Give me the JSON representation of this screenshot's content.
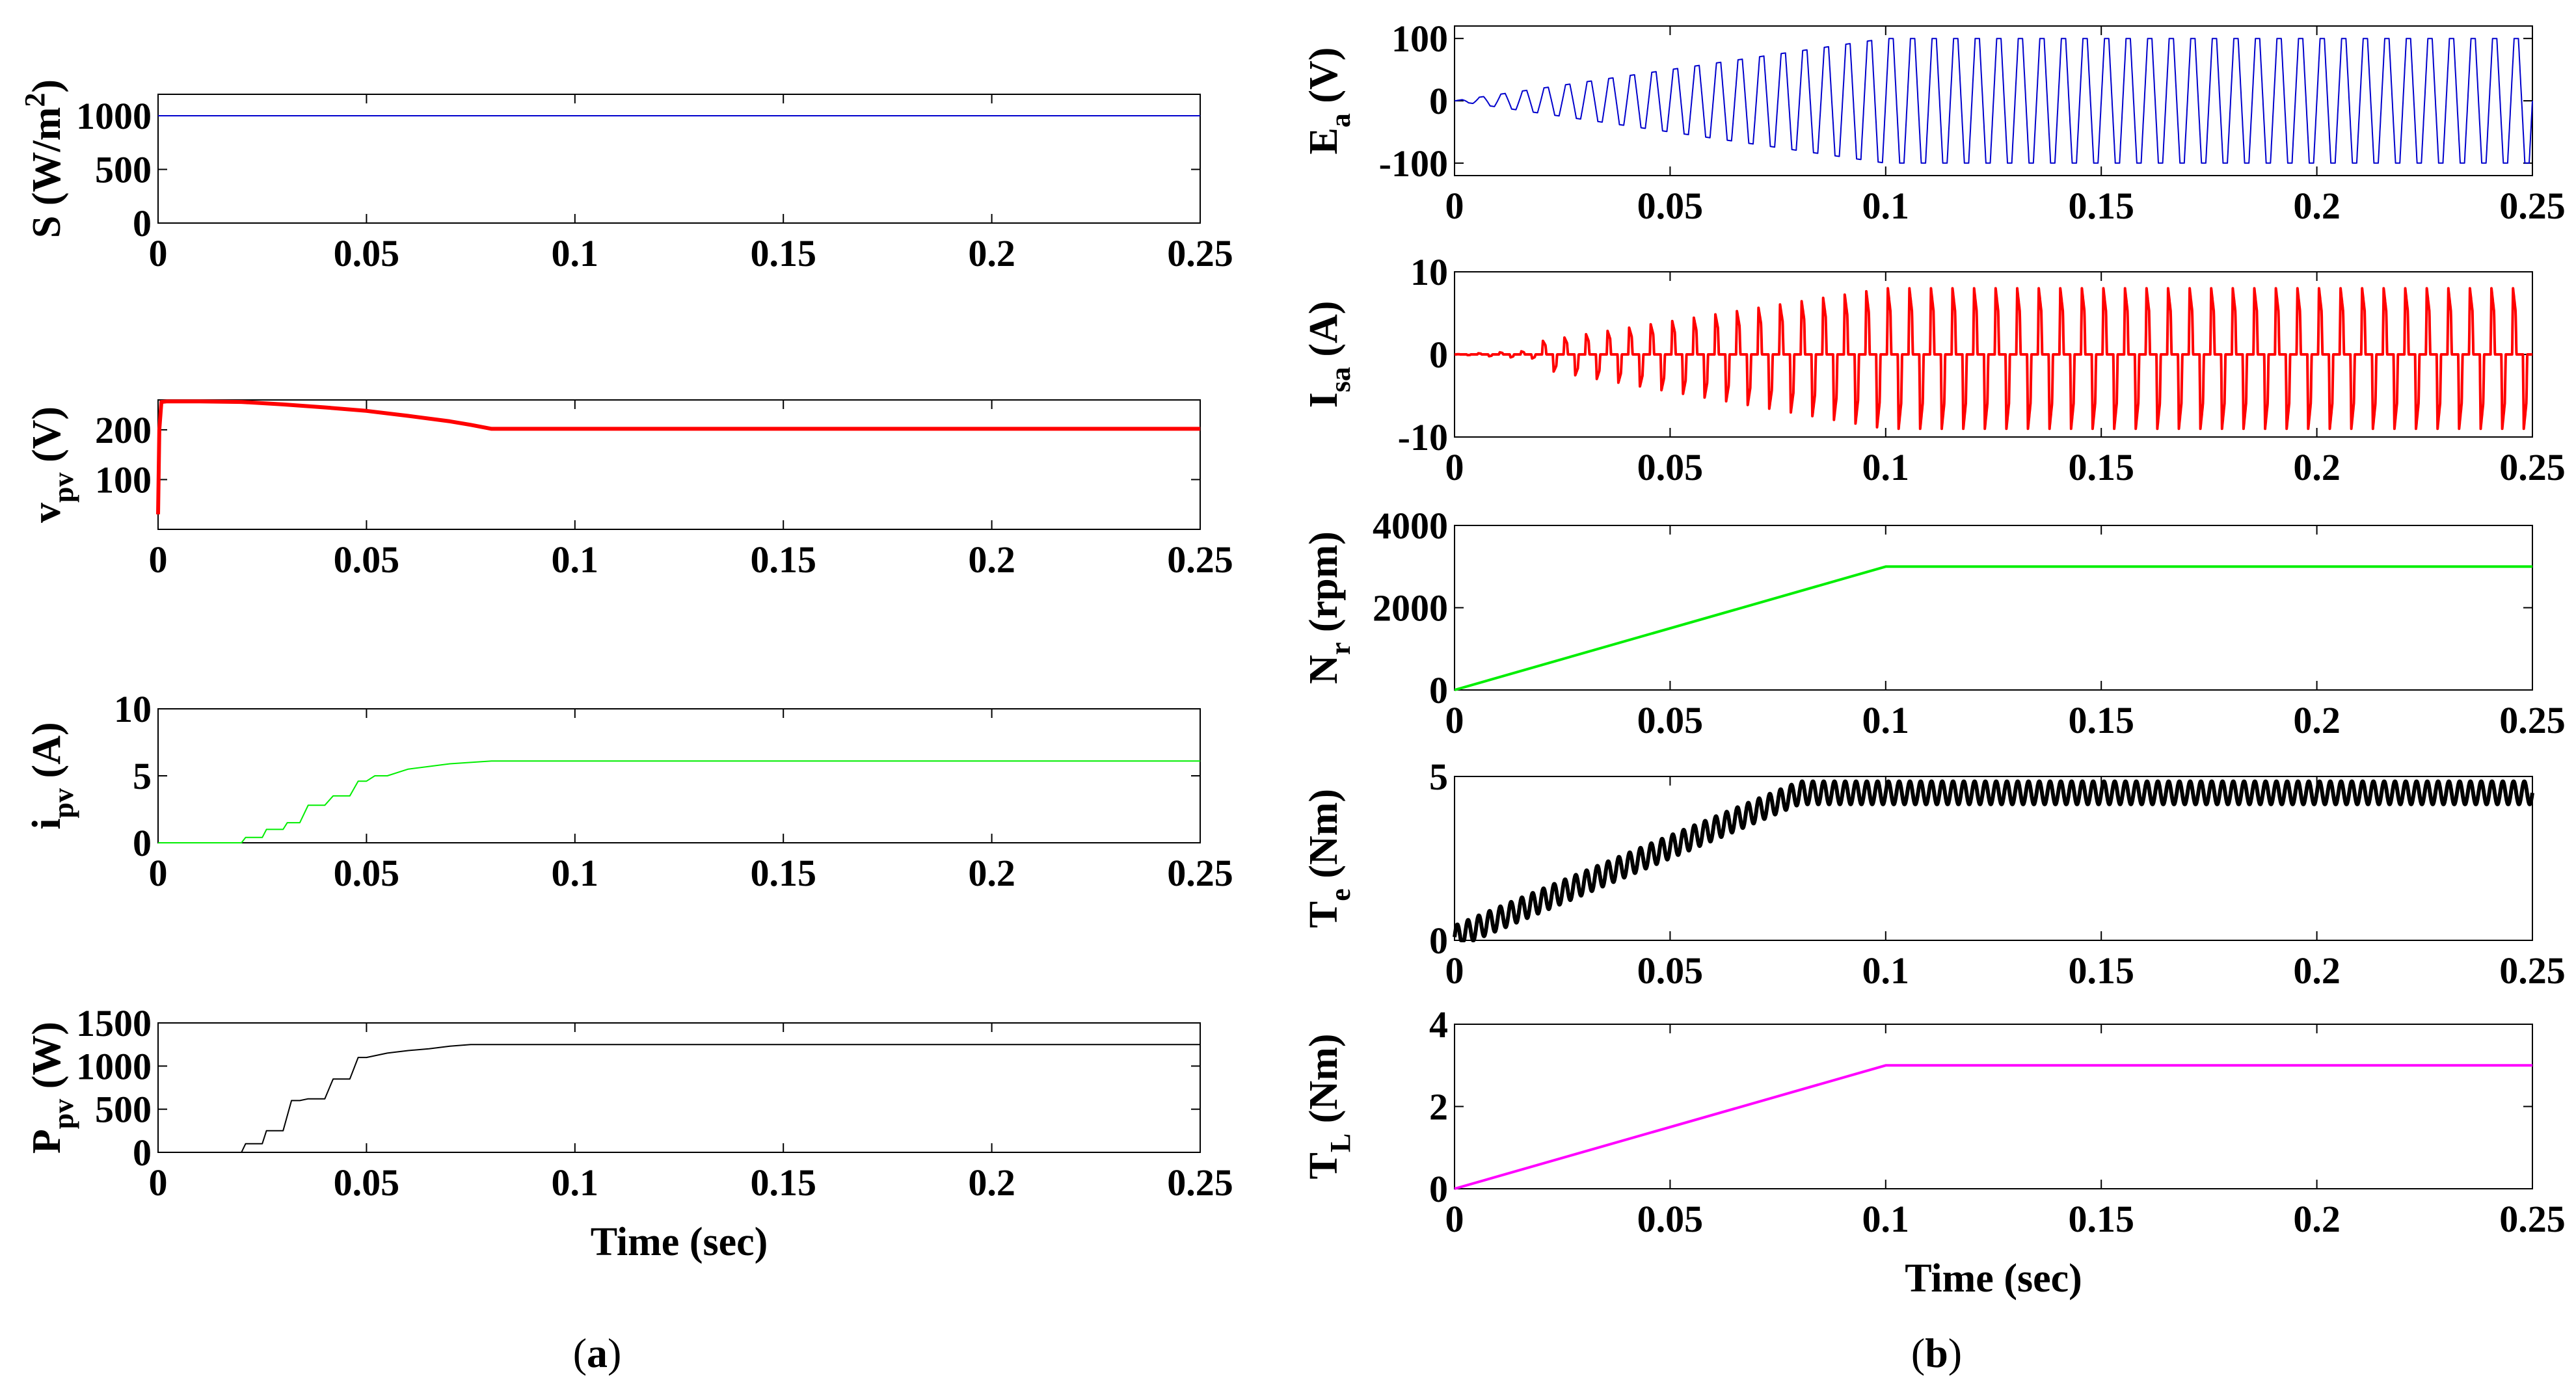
{
  "figure": {
    "captions": [
      {
        "open": "(",
        "letter": "a",
        "close": ")"
      },
      {
        "open": "(",
        "letter": "b",
        "close": ")"
      }
    ]
  },
  "chart_data": [
    {
      "id": "a1",
      "type": "line",
      "title": "",
      "ylabel": {
        "main": "S (W/m",
        "sup": "2",
        "tail": ")"
      },
      "xlabel": "",
      "xlim": [
        0,
        0.25
      ],
      "ylim": [
        0,
        1200
      ],
      "xticks": [
        "0",
        "0.05",
        "0.1",
        "0.15",
        "0.2",
        "0.25"
      ],
      "yticks": [
        {
          "v": 0,
          "label": "0"
        },
        {
          "v": 500,
          "label": "500"
        },
        {
          "v": 1000,
          "label": "1000"
        }
      ],
      "grid": false,
      "color": "#0000cc",
      "stroke_weight": 1,
      "series": [
        {
          "x": [
            0,
            0.25
          ],
          "y": [
            1000,
            1000
          ]
        }
      ]
    },
    {
      "id": "a2",
      "type": "line",
      "title": "",
      "ylabel": {
        "main": "v",
        "sub": "pv",
        "tail": " (V)"
      },
      "xlabel": "",
      "xlim": [
        0,
        0.25
      ],
      "ylim": [
        0,
        260
      ],
      "xticks": [
        "0",
        "0.05",
        "0.1",
        "0.15",
        "0.2",
        "0.25"
      ],
      "yticks": [
        {
          "v": 100,
          "label": "100"
        },
        {
          "v": 200,
          "label": "200"
        }
      ],
      "grid": false,
      "color": "#ff0000",
      "stroke_weight": 3,
      "series": [
        {
          "x": [
            0,
            0.0003,
            0.0008,
            0.002,
            0.01,
            0.02,
            0.03,
            0.04,
            0.05,
            0.06,
            0.07,
            0.075,
            0.08,
            0.25
          ],
          "y": [
            30,
            200,
            256,
            257,
            257,
            256,
            251,
            245,
            238,
            228,
            217,
            210,
            202,
            202
          ]
        }
      ]
    },
    {
      "id": "a3",
      "type": "line",
      "title": "",
      "ylabel": {
        "main": "i",
        "sub": "pv",
        "tail": " (A)"
      },
      "xlabel": "",
      "xlim": [
        0,
        0.25
      ],
      "ylim": [
        0,
        10
      ],
      "xticks": [
        "0",
        "0.05",
        "0.1",
        "0.15",
        "0.2",
        "0.25"
      ],
      "yticks": [
        {
          "v": 0,
          "label": "0"
        },
        {
          "v": 5,
          "label": "5"
        },
        {
          "v": 10,
          "label": "10"
        }
      ],
      "grid": false,
      "color": "#00ee00",
      "stroke_weight": 1,
      "series": [
        {
          "x": [
            0,
            0.02,
            0.021,
            0.025,
            0.026,
            0.03,
            0.031,
            0.034,
            0.036,
            0.04,
            0.042,
            0.046,
            0.048,
            0.05,
            0.052,
            0.055,
            0.06,
            0.065,
            0.07,
            0.075,
            0.08,
            0.25
          ],
          "y": [
            0,
            0,
            0.4,
            0.4,
            1.0,
            1.0,
            1.5,
            1.5,
            2.8,
            2.8,
            3.5,
            3.5,
            4.6,
            4.6,
            5.0,
            5.0,
            5.5,
            5.7,
            5.9,
            6.0,
            6.1,
            6.1
          ]
        }
      ]
    },
    {
      "id": "a4",
      "type": "line",
      "title": "",
      "ylabel": {
        "main": "P",
        "sub": "pv",
        "tail": " (W)"
      },
      "xlabel": "Time (sec)",
      "xlim": [
        0,
        0.25
      ],
      "ylim": [
        0,
        1500
      ],
      "xticks": [
        "0",
        "0.05",
        "0.1",
        "0.15",
        "0.2",
        "0.25"
      ],
      "yticks": [
        {
          "v": 0,
          "label": "0"
        },
        {
          "v": 500,
          "label": "500"
        },
        {
          "v": 1000,
          "label": "1000"
        },
        {
          "v": 1500,
          "label": "1500"
        }
      ],
      "grid": false,
      "color": "#000000",
      "stroke_weight": 1,
      "series": [
        {
          "x": [
            0,
            0.02,
            0.021,
            0.025,
            0.026,
            0.03,
            0.032,
            0.034,
            0.036,
            0.04,
            0.042,
            0.046,
            0.048,
            0.05,
            0.055,
            0.06,
            0.065,
            0.07,
            0.075,
            0.08,
            0.25
          ],
          "y": [
            0,
            0,
            100,
            100,
            250,
            250,
            600,
            600,
            620,
            620,
            850,
            850,
            1100,
            1100,
            1150,
            1180,
            1200,
            1230,
            1250,
            1250,
            1250
          ]
        }
      ]
    },
    {
      "id": "b1",
      "type": "line",
      "title": "",
      "ylabel": {
        "main": "E",
        "sub": "a",
        "tail": " (V)"
      },
      "xlabel": "",
      "xlim": [
        0,
        0.25
      ],
      "ylim": [
        -120,
        120
      ],
      "xticks": [
        "0",
        "0.05",
        "0.1",
        "0.15",
        "0.2",
        "0.25"
      ],
      "yticks": [
        {
          "v": -100,
          "label": "-100"
        },
        {
          "v": 0,
          "label": "0"
        },
        {
          "v": 100,
          "label": "100"
        }
      ],
      "grid": false,
      "color": "#0000cc",
      "stroke_weight": 1,
      "pattern": {
        "kind": "trapezoidal",
        "period": 0.005,
        "ramp_end": 0.1,
        "amp_final": 100
      }
    },
    {
      "id": "b2",
      "type": "line",
      "title": "",
      "ylabel": {
        "main": "I",
        "sub": "sa",
        "tail": " (A)"
      },
      "xlabel": "",
      "xlim": [
        0,
        0.25
      ],
      "ylim": [
        -10,
        10
      ],
      "xticks": [
        "0",
        "0.05",
        "0.1",
        "0.15",
        "0.2",
        "0.25"
      ],
      "yticks": [
        {
          "v": -10,
          "label": "-10"
        },
        {
          "v": 0,
          "label": "0"
        },
        {
          "v": 10,
          "label": "10"
        }
      ],
      "grid": false,
      "color": "#ff0000",
      "stroke_weight": 2,
      "pattern": {
        "kind": "pulsed",
        "period": 0.005,
        "ramp_end": 0.1,
        "amp_pos": 8,
        "amp_neg": 9
      }
    },
    {
      "id": "b3",
      "type": "line",
      "title": "",
      "ylabel": {
        "main": "N",
        "sub": "r",
        "tail": " (rpm)"
      },
      "xlabel": "",
      "xlim": [
        0,
        0.25
      ],
      "ylim": [
        0,
        4000
      ],
      "xticks": [
        "0",
        "0.05",
        "0.1",
        "0.15",
        "0.2",
        "0.25"
      ],
      "yticks": [
        {
          "v": 0,
          "label": "0"
        },
        {
          "v": 2000,
          "label": "2000"
        },
        {
          "v": 4000,
          "label": "4000"
        }
      ],
      "grid": false,
      "color": "#00ee00",
      "stroke_weight": 2,
      "series": [
        {
          "x": [
            0,
            0.1,
            0.25
          ],
          "y": [
            0,
            3000,
            3000
          ]
        }
      ]
    },
    {
      "id": "b4",
      "type": "line",
      "title": "",
      "ylabel": {
        "main": "T",
        "sub": "e",
        "tail": " (Nm)"
      },
      "xlabel": "",
      "xlim": [
        0,
        0.25
      ],
      "ylim": [
        0,
        5
      ],
      "xticks": [
        "0",
        "0.05",
        "0.1",
        "0.15",
        "0.2",
        "0.25"
      ],
      "yticks": [
        {
          "v": 0,
          "label": "0"
        },
        {
          "v": 5,
          "label": "5"
        }
      ],
      "grid": false,
      "color": "#000000",
      "stroke_weight": 3,
      "pattern": {
        "kind": "ripple",
        "period": 0.0025,
        "ramp_end": 0.08,
        "mean_final": 4.5,
        "ripple": 0.35
      }
    },
    {
      "id": "b5",
      "type": "line",
      "title": "",
      "ylabel": {
        "main": "T",
        "sub": "L",
        "tail": " (Nm)"
      },
      "xlabel": "Time (sec)",
      "xlim": [
        0,
        0.25
      ],
      "ylim": [
        0,
        4
      ],
      "xticks": [
        "0",
        "0.05",
        "0.1",
        "0.15",
        "0.2",
        "0.25"
      ],
      "yticks": [
        {
          "v": 0,
          "label": "0"
        },
        {
          "v": 2,
          "label": "2"
        },
        {
          "v": 4,
          "label": "4"
        }
      ],
      "grid": false,
      "color": "#ff00ff",
      "stroke_weight": 2,
      "series": [
        {
          "x": [
            0,
            0.1,
            0.25
          ],
          "y": [
            0,
            3,
            3
          ]
        }
      ]
    }
  ]
}
